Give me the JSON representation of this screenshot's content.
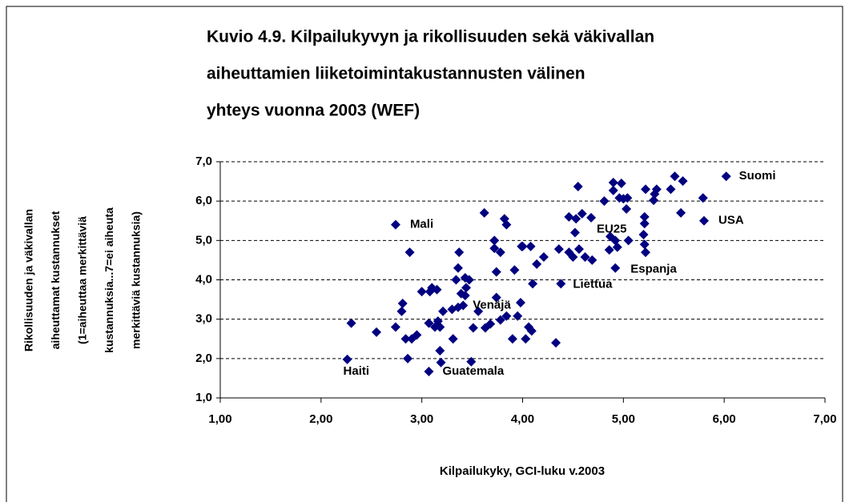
{
  "chart_data": {
    "type": "scatter",
    "title": [
      "Kuvio 4.9.  Kilpailukyvyn ja rikollisuuden sekä väkivallan",
      "aiheuttamien liiketoimintakustannusten välinen",
      "yhteys vuonna 2003 (WEF)"
    ],
    "x_label": "Kilpailukyky, GCI-luku v.2003",
    "y_label": [
      "Rikollisuuden ja väkivallan",
      "aiheuttamat kustannukset",
      "(1=aiheuttaa merkittäviä",
      "kustannuksia...7=ei aiheuta",
      "merkittäviä kustannuksia)"
    ],
    "color": "#000080",
    "grid": true,
    "xlim": [
      1,
      7
    ],
    "ylim": [
      1,
      7
    ],
    "xticks": [
      {
        "value": 1,
        "label": "1,00"
      },
      {
        "value": 2,
        "label": "2,00"
      },
      {
        "value": 3,
        "label": "3,00"
      },
      {
        "value": 4,
        "label": "4,00"
      },
      {
        "value": 5,
        "label": "5,00"
      },
      {
        "value": 6,
        "label": "6,00"
      },
      {
        "value": 7,
        "label": "7,00"
      }
    ],
    "yticks": [
      {
        "value": 1,
        "label": "1,0"
      },
      {
        "value": 2,
        "label": "2,0"
      },
      {
        "value": 3,
        "label": "3,0"
      },
      {
        "value": 4,
        "label": "4,0"
      },
      {
        "value": 5,
        "label": "5,0"
      },
      {
        "value": 6,
        "label": "6,0"
      },
      {
        "value": 7,
        "label": "7,0"
      }
    ],
    "x": [
      2.3,
      2.55,
      2.74,
      2.81,
      2.8,
      2.84,
      2.86,
      2.88,
      2.9,
      2.95,
      3.0,
      3.07,
      3.08,
      3.1,
      3.13,
      3.15,
      3.16,
      3.18,
      3.18,
      3.19,
      3.21,
      3.3,
      3.31,
      3.34,
      3.36,
      3.36,
      3.37,
      3.39,
      3.43,
      3.43,
      3.44,
      3.47,
      3.49,
      3.51,
      3.56,
      3.62,
      3.63,
      3.68,
      3.72,
      3.72,
      3.74,
      3.74,
      3.78,
      3.78,
      3.82,
      3.84,
      3.84,
      3.9,
      3.92,
      3.95,
      3.98,
      3.99,
      4.0,
      4.03,
      4.06,
      4.08,
      4.09,
      4.1,
      4.14,
      4.21,
      4.33,
      4.36,
      4.46,
      4.46,
      4.5,
      4.52,
      4.53,
      4.55,
      4.56,
      4.59,
      4.62,
      4.68,
      4.69,
      4.81,
      4.86,
      4.9,
      4.9,
      4.92,
      4.94,
      4.96,
      4.98,
      5.0,
      5.03,
      5.04,
      5.05,
      5.2,
      5.21,
      5.21,
      5.21,
      5.22,
      5.22,
      5.3,
      5.31,
      5.33,
      5.47,
      5.51,
      5.57,
      5.59,
      5.79
    ],
    "values": [
      2.9,
      2.67,
      2.8,
      3.4,
      3.2,
      2.5,
      2.0,
      4.7,
      2.5,
      2.6,
      3.7,
      2.9,
      3.7,
      3.8,
      2.8,
      3.75,
      2.95,
      2.8,
      2.2,
      1.9,
      3.2,
      3.25,
      2.5,
      4.0,
      4.3,
      3.3,
      4.7,
      3.65,
      3.6,
      4.05,
      3.8,
      4.0,
      1.92,
      2.78,
      3.2,
      5.7,
      2.78,
      2.88,
      5.0,
      4.8,
      4.2,
      3.55,
      4.7,
      2.98,
      5.55,
      5.4,
      3.08,
      2.5,
      4.25,
      3.08,
      3.42,
      4.85,
      4.85,
      2.5,
      2.8,
      4.85,
      2.7,
      3.9,
      4.4,
      4.58,
      2.4,
      4.78,
      5.6,
      4.7,
      4.58,
      5.2,
      5.55,
      6.37,
      4.78,
      5.68,
      4.58,
      5.58,
      4.5,
      6.0,
      4.76,
      6.27,
      6.47,
      5.0,
      4.83,
      6.08,
      6.45,
      6.06,
      5.8,
      6.08,
      5.0,
      5.15,
      5.6,
      5.43,
      4.9,
      6.3,
      4.7,
      6.02,
      6.18,
      6.3,
      6.3,
      6.63,
      5.7,
      6.51,
      6.08
    ],
    "point_labels": [
      {
        "label": "Suomi",
        "x": 6.02,
        "y": 6.63
      },
      {
        "label": "USA",
        "x": 5.8,
        "y": 5.5
      },
      {
        "label": "Mali",
        "x": 2.74,
        "y": 5.4
      },
      {
        "label": "EU25",
        "x": 4.87,
        "y": 5.1
      },
      {
        "label": "Espanja",
        "x": 4.92,
        "y": 4.3
      },
      {
        "label": "Liettua",
        "x": 4.38,
        "y": 3.9
      },
      {
        "label": "Venäjä",
        "x": 3.41,
        "y": 3.35
      },
      {
        "label": "Haiti",
        "x": 2.26,
        "y": 1.98
      },
      {
        "label": "Guatemala",
        "x": 3.07,
        "y": 1.67
      }
    ]
  }
}
